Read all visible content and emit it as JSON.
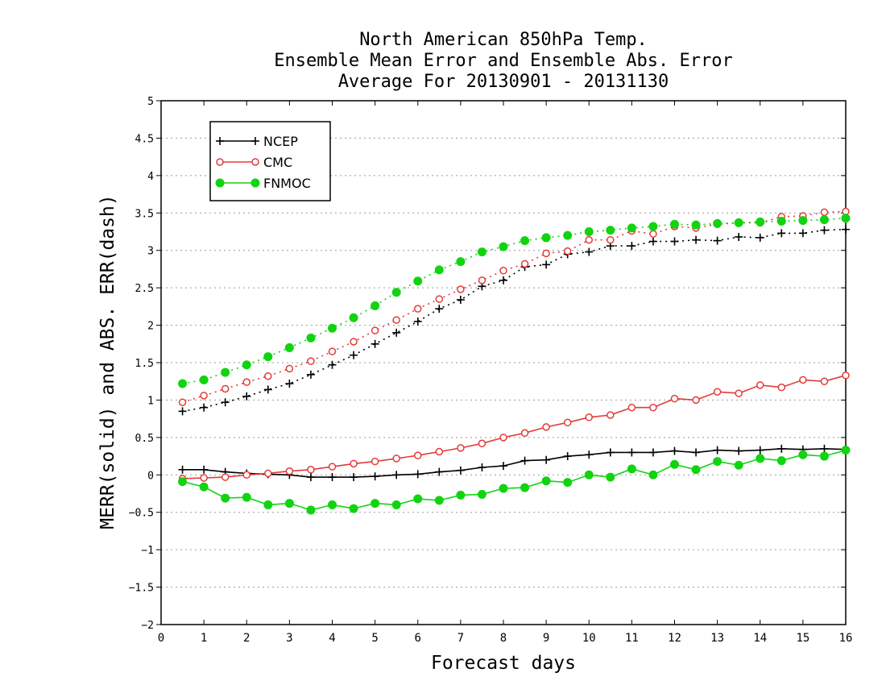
{
  "chart_data": {
    "type": "line",
    "title": [
      "North American 850hPa Temp.",
      "Ensemble Mean Error and Ensemble Abs. Error",
      "Average For 20130901 - 20131130"
    ],
    "xlabel": "Forecast days",
    "ylabel": "MERR(solid) and ABS. ERR(dash)",
    "xlim": [
      0,
      16
    ],
    "ylim": [
      -2,
      5
    ],
    "x_ticks": [
      0,
      1,
      2,
      3,
      4,
      5,
      6,
      7,
      8,
      9,
      10,
      11,
      12,
      13,
      14,
      15,
      16
    ],
    "y_ticks": [
      -2,
      -1.5,
      -1,
      -0.5,
      0,
      0.5,
      1,
      1.5,
      2,
      2.5,
      3,
      3.5,
      4,
      4.5,
      5
    ],
    "grid": "dotted horizontal",
    "legend_position": "top-left",
    "x": [
      0.5,
      1,
      1.5,
      2,
      2.5,
      3,
      3.5,
      4,
      4.5,
      5,
      5.5,
      6,
      6.5,
      7,
      7.5,
      8,
      8.5,
      9,
      9.5,
      10,
      10.5,
      11,
      11.5,
      12,
      12.5,
      13,
      13.5,
      14,
      14.5,
      15,
      15.5,
      16
    ],
    "series": [
      {
        "name": "NCEP",
        "style": "solid",
        "marker": "plus",
        "color": "#000000",
        "values": [
          0.07,
          0.07,
          0.04,
          0.02,
          0.01,
          0.0,
          -0.03,
          -0.03,
          -0.03,
          -0.02,
          0.0,
          0.01,
          0.04,
          0.06,
          0.1,
          0.12,
          0.19,
          0.2,
          0.25,
          0.27,
          0.3,
          0.3,
          0.3,
          0.32,
          0.3,
          0.33,
          0.32,
          0.33,
          0.35,
          0.34,
          0.35,
          0.34
        ]
      },
      {
        "name": "CMC",
        "style": "solid",
        "marker": "open-circle",
        "color": "#e23b3b",
        "values": [
          -0.05,
          -0.04,
          -0.03,
          0.0,
          0.02,
          0.05,
          0.07,
          0.11,
          0.15,
          0.18,
          0.22,
          0.26,
          0.31,
          0.36,
          0.42,
          0.5,
          0.56,
          0.64,
          0.7,
          0.77,
          0.8,
          0.9,
          0.9,
          1.02,
          1.0,
          1.11,
          1.09,
          1.2,
          1.17,
          1.27,
          1.25,
          1.33
        ]
      },
      {
        "name": "FNMOC",
        "style": "solid",
        "marker": "filled-circle",
        "color": "#11d411",
        "values": [
          -0.09,
          -0.16,
          -0.31,
          -0.3,
          -0.4,
          -0.38,
          -0.47,
          -0.4,
          -0.45,
          -0.38,
          -0.4,
          -0.32,
          -0.34,
          -0.27,
          -0.26,
          -0.18,
          -0.17,
          -0.08,
          -0.1,
          0.0,
          -0.03,
          0.08,
          0.0,
          0.14,
          0.07,
          0.18,
          0.13,
          0.22,
          0.19,
          0.27,
          0.25,
          0.33
        ]
      },
      {
        "name": "NCEP",
        "style": "dotted",
        "marker": "plus",
        "color": "#000000",
        "values": [
          0.85,
          0.9,
          0.97,
          1.05,
          1.14,
          1.22,
          1.34,
          1.47,
          1.6,
          1.75,
          1.9,
          2.05,
          2.22,
          2.34,
          2.52,
          2.6,
          2.78,
          2.81,
          2.95,
          2.98,
          3.06,
          3.06,
          3.12,
          3.12,
          3.14,
          3.13,
          3.18,
          3.17,
          3.23,
          3.23,
          3.27,
          3.28
        ]
      },
      {
        "name": "CMC",
        "style": "dotted",
        "marker": "open-circle",
        "color": "#e23b3b",
        "values": [
          0.97,
          1.06,
          1.15,
          1.24,
          1.32,
          1.42,
          1.52,
          1.65,
          1.78,
          1.93,
          2.07,
          2.22,
          2.35,
          2.48,
          2.6,
          2.73,
          2.82,
          2.96,
          2.99,
          3.14,
          3.14,
          3.26,
          3.22,
          3.32,
          3.3,
          3.35,
          3.37,
          3.37,
          3.45,
          3.46,
          3.51,
          3.52
        ]
      },
      {
        "name": "FNMOC",
        "style": "dotted",
        "marker": "filled-circle",
        "color": "#11d411",
        "values": [
          1.22,
          1.27,
          1.37,
          1.47,
          1.58,
          1.7,
          1.83,
          1.96,
          2.1,
          2.26,
          2.44,
          2.59,
          2.74,
          2.85,
          2.98,
          3.05,
          3.13,
          3.17,
          3.2,
          3.25,
          3.27,
          3.3,
          3.32,
          3.35,
          3.34,
          3.36,
          3.37,
          3.38,
          3.39,
          3.4,
          3.41,
          3.43
        ]
      }
    ],
    "legend": [
      {
        "label": "NCEP",
        "marker": "plus",
        "color": "#000000"
      },
      {
        "label": "CMC",
        "marker": "open-circle",
        "color": "#e23b3b"
      },
      {
        "label": "FNMOC",
        "marker": "filled-circle",
        "color": "#11d411"
      }
    ]
  }
}
